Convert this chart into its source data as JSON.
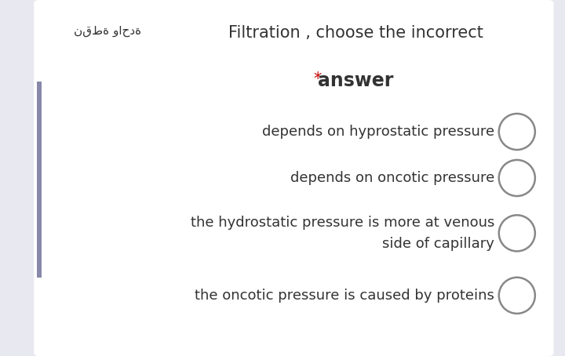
{
  "bg_color": "#e8e8f0",
  "card_color": "#ffffff",
  "title_line1": "Filtration , choose the incorrect",
  "title_line2": "answer",
  "title_star": "*",
  "arabic_text": "نقطة واحدة",
  "options": [
    "depends on hyprostatic pressure",
    "depends on oncotic pressure",
    "the hydrostatic pressure is more at venous\nside of capillary",
    "the oncotic pressure is caused by proteins"
  ],
  "title_fontsize": 15,
  "option_fontsize": 13,
  "arabic_fontsize": 11,
  "star_color": "#cc0000",
  "text_color": "#333333",
  "circle_color": "#888888",
  "left_bar_color": "#8888aa"
}
